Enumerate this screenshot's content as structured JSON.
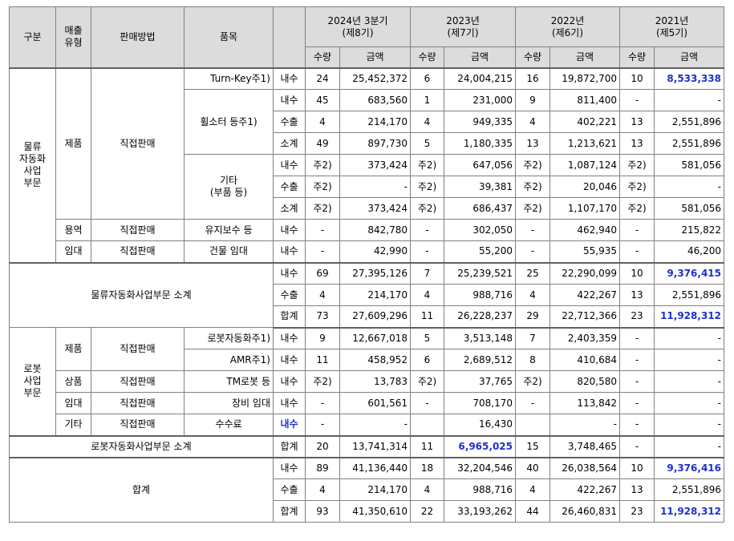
{
  "header": {
    "category": "구분",
    "sales_type": "매출\n유형",
    "sales_method": "판매방법",
    "item": "품목",
    "periods": [
      {
        "year": "2024년 3분기",
        "term": "(제8기)"
      },
      {
        "year": "2023년",
        "term": "(제7기)"
      },
      {
        "year": "2022년",
        "term": "(제6기)"
      },
      {
        "year": "2021년",
        "term": "(제5기)"
      }
    ],
    "qty": "수량",
    "amount": "금액"
  },
  "logistics": {
    "label": "물류\n자동화\n사업\n부문",
    "product": "제품",
    "service": "용역",
    "rental": "임대",
    "direct": "직접판매",
    "turnkey": "Turn-Key주1)",
    "wheel": "휠소터 등주1)",
    "other": "기타\n(부품 등)",
    "maint": "유지보수 등",
    "building": "건물 임대",
    "rows": {
      "turnkey_dom": [
        "내수",
        "24",
        "25,452,372",
        "6",
        "24,004,215",
        "16",
        "19,872,700",
        "10",
        "8,533,338"
      ],
      "wheel_dom": [
        "내수",
        "45",
        "683,560",
        "1",
        "231,000",
        "9",
        "811,400",
        "-",
        "-"
      ],
      "wheel_exp": [
        "수출",
        "4",
        "214,170",
        "4",
        "949,335",
        "4",
        "402,221",
        "13",
        "2,551,896"
      ],
      "wheel_sub": [
        "소계",
        "49",
        "897,730",
        "5",
        "1,180,335",
        "13",
        "1,213,621",
        "13",
        "2,551,896"
      ],
      "other_dom": [
        "내수",
        "주2)",
        "373,424",
        "주2)",
        "647,056",
        "주2)",
        "1,087,124",
        "주2)",
        "581,056"
      ],
      "other_exp": [
        "수출",
        "주2)",
        "-",
        "주2)",
        "39,381",
        "주2)",
        "20,046",
        "주2)",
        "-"
      ],
      "other_sub": [
        "소계",
        "주2)",
        "373,424",
        "주2)",
        "686,437",
        "주2)",
        "1,107,170",
        "주2)",
        "581,056"
      ],
      "maint_dom": [
        "내수",
        "-",
        "842,780",
        "-",
        "302,050",
        "-",
        "462,940",
        "-",
        "215,822"
      ],
      "building_dom": [
        "내수",
        "-",
        "42,990",
        "-",
        "55,200",
        "-",
        "55,935",
        "-",
        "46,200"
      ]
    }
  },
  "logistics_subtotal": {
    "label": "물류자동화사업부문 소계",
    "rows": {
      "dom": [
        "내수",
        "69",
        "27,395,126",
        "7",
        "25,239,521",
        "25",
        "22,290,099",
        "10",
        "9,376,415"
      ],
      "exp": [
        "수출",
        "4",
        "214,170",
        "4",
        "988,716",
        "4",
        "422,267",
        "13",
        "2,551,896"
      ],
      "total": [
        "합계",
        "73",
        "27,609,296",
        "11",
        "26,228,237",
        "29",
        "22,712,366",
        "23",
        "11,928,312"
      ]
    }
  },
  "robot": {
    "label": "로봇\n사업\n부문",
    "product": "제품",
    "goods": "상품",
    "rental": "임대",
    "etc": "기타",
    "direct": "직접판매",
    "robot_auto": "로봇자동화주1)",
    "amr": "AMR주1)",
    "tm": "TM로봇 등",
    "equip": "장비 임대",
    "fee": "수수료",
    "rows": {
      "robot_auto": [
        "내수",
        "9",
        "12,667,018",
        "5",
        "3,513,148",
        "7",
        "2,403,359",
        "-",
        "-"
      ],
      "amr": [
        "내수",
        "11",
        "458,952",
        "6",
        "2,689,512",
        "8",
        "410,684",
        "-",
        "-"
      ],
      "tm": [
        "내수",
        "주2)",
        "13,783",
        "주2)",
        "37,765",
        "주2)",
        "820,580",
        "-",
        "-"
      ],
      "equip": [
        "내수",
        "-",
        "601,561",
        "-",
        "708,170",
        "-",
        "113,842",
        "-",
        "-"
      ],
      "fee": [
        "내수",
        "-",
        "-",
        "",
        "16,430",
        "",
        "-",
        "-",
        "-"
      ]
    }
  },
  "robot_subtotal": {
    "label": "로봇자동화사업부문 소계",
    "row": [
      "합계",
      "20",
      "13,741,314",
      "11",
      "6,965,025",
      "15",
      "3,748,465",
      "-",
      "-"
    ]
  },
  "grand_total": {
    "label": "합계",
    "rows": {
      "dom": [
        "내수",
        "89",
        "41,136,440",
        "18",
        "32,204,546",
        "40",
        "26,038,564",
        "10",
        "9,376,416"
      ],
      "exp": [
        "수출",
        "4",
        "214,170",
        "4",
        "988,716",
        "4",
        "422,267",
        "13",
        "2,551,896"
      ],
      "total": [
        "합계",
        "93",
        "41,350,610",
        "22",
        "33,193,262",
        "44",
        "26,460,831",
        "23",
        "11,928,312"
      ]
    }
  },
  "colors": {
    "header_bg": "#dcdcdc",
    "highlight": "#1f2fd0",
    "border": "#808080"
  }
}
